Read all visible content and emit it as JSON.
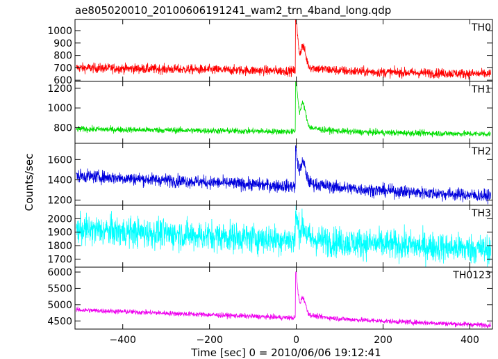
{
  "chart_data": {
    "type": "line",
    "title": "ae805020010_20100606191241_wam2_trn_4band_long.qdp",
    "xlabel": "Time [sec] 0 = 2010/06/06 19:12:41",
    "ylabel": "Counts/sec",
    "xlim": [
      -510,
      452
    ],
    "xticks": [
      -400,
      -200,
      0,
      200,
      400
    ],
    "x_start": -507,
    "x_end": 448,
    "burst_time": 0,
    "panels": [
      {
        "name": "TH0",
        "color": "#ff0000",
        "ylim": [
          590,
          1090
        ],
        "yticks": [
          600,
          700,
          800,
          900,
          1000
        ],
        "baseline_start": 700,
        "baseline_end": 650,
        "noise": 28,
        "peak": 1070,
        "secondary_peak": 925,
        "decay": 55
      },
      {
        "name": "TH1",
        "color": "#00dd00",
        "ylim": [
          640,
          1270
        ],
        "yticks": [
          800,
          1000,
          1200
        ],
        "baseline_start": 785,
        "baseline_end": 735,
        "noise": 22,
        "peak": 1260,
        "secondary_peak": 1110,
        "decay": 50
      },
      {
        "name": "TH2",
        "color": "#0000dd",
        "ylim": [
          1150,
          1760
        ],
        "yticks": [
          1200,
          1400,
          1600
        ],
        "baseline_start": 1440,
        "baseline_end": 1240,
        "noise": 45,
        "peak": 1730,
        "secondary_peak": 1710,
        "decay": 60
      },
      {
        "name": "TH3",
        "color": "#00ffff",
        "ylim": [
          1640,
          2100
        ],
        "yticks": [
          1700,
          1800,
          1900,
          2000
        ],
        "baseline_start": 1920,
        "baseline_end": 1770,
        "noise": 80,
        "peak": 2080,
        "secondary_peak": 2040,
        "decay": 40
      },
      {
        "name": "TH0123",
        "color": "#ee00ee",
        "ylim": [
          4250,
          6150
        ],
        "yticks": [
          4500,
          5000,
          5500,
          6000
        ],
        "baseline_start": 4840,
        "baseline_end": 4370,
        "noise": 55,
        "peak": 6050,
        "secondary_peak": 5550,
        "decay": 55
      }
    ]
  }
}
